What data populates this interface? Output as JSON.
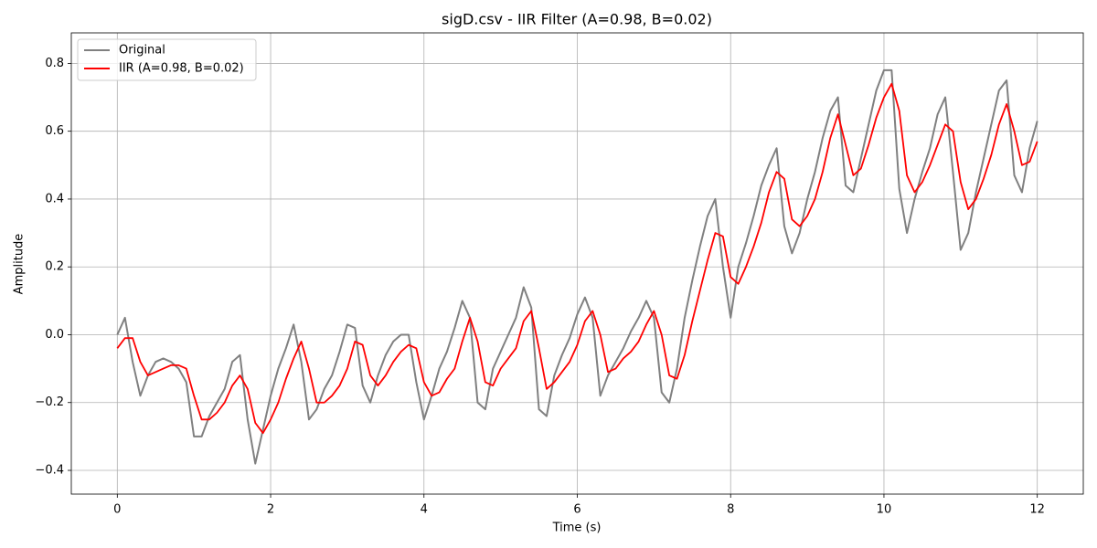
{
  "chart_data": {
    "type": "line",
    "title": "sigD.csv - IIR Filter (A=0.98, B=0.02)",
    "x_label": "Time (s)",
    "y_label": "Amplitude",
    "x": [
      0,
      0.1,
      0.2,
      0.3,
      0.4,
      0.5,
      0.6,
      0.7,
      0.8,
      0.9,
      1,
      1.1,
      1.2,
      1.3,
      1.4,
      1.5,
      1.6,
      1.7,
      1.8,
      1.9,
      2,
      2.1,
      2.2,
      2.3,
      2.4,
      2.5,
      2.6,
      2.7,
      2.8,
      2.9,
      3,
      3.1,
      3.2,
      3.3,
      3.4,
      3.5,
      3.6,
      3.7,
      3.8,
      3.9,
      4,
      4.1,
      4.2,
      4.3,
      4.4,
      4.5,
      4.6,
      4.7,
      4.8,
      4.9,
      5,
      5.1,
      5.2,
      5.3,
      5.4,
      5.5,
      5.6,
      5.7,
      5.8,
      5.9,
      6,
      6.1,
      6.2,
      6.3,
      6.4,
      6.5,
      6.6,
      6.7,
      6.8,
      6.9,
      7,
      7.1,
      7.2,
      7.3,
      7.4,
      7.5,
      7.6,
      7.7,
      7.8,
      7.9,
      8,
      8.1,
      8.2,
      8.3,
      8.4,
      8.5,
      8.6,
      8.7,
      8.8,
      8.9,
      9,
      9.1,
      9.2,
      9.3,
      9.4,
      9.5,
      9.6,
      9.7,
      9.8,
      9.9,
      10,
      10.1,
      10.2,
      10.3,
      10.4,
      10.5,
      10.6,
      10.7,
      10.8,
      10.9,
      11,
      11.1,
      11.2,
      11.3,
      11.4,
      11.5,
      11.6,
      11.7,
      11.8,
      11.9,
      12
    ],
    "series": [
      {
        "name": "Original",
        "color": "#808080",
        "values": [
          0,
          0.05,
          -0.08,
          -0.18,
          -0.12,
          -0.08,
          -0.07,
          -0.08,
          -0.1,
          -0.14,
          -0.3,
          -0.3,
          -0.24,
          -0.2,
          -0.16,
          -0.08,
          -0.06,
          -0.25,
          -0.38,
          -0.28,
          -0.18,
          -0.1,
          -0.04,
          0.03,
          -0.08,
          -0.25,
          -0.22,
          -0.16,
          -0.12,
          -0.05,
          0.03,
          0.02,
          -0.15,
          -0.2,
          -0.12,
          -0.06,
          -0.02,
          0,
          0,
          -0.14,
          -0.25,
          -0.18,
          -0.1,
          -0.05,
          0.02,
          0.1,
          0.05,
          -0.2,
          -0.22,
          -0.1,
          -0.05,
          0,
          0.05,
          0.14,
          0.08,
          -0.22,
          -0.24,
          -0.12,
          -0.06,
          -0.01,
          0.06,
          0.11,
          0.05,
          -0.18,
          -0.12,
          -0.08,
          -0.04,
          0.01,
          0.05,
          0.1,
          0.05,
          -0.17,
          -0.2,
          -0.1,
          0.05,
          0.16,
          0.26,
          0.35,
          0.4,
          0.2,
          0.05,
          0.2,
          0.27,
          0.35,
          0.44,
          0.5,
          0.55,
          0.32,
          0.24,
          0.3,
          0.4,
          0.48,
          0.58,
          0.66,
          0.7,
          0.44,
          0.42,
          0.52,
          0.62,
          0.72,
          0.78,
          0.78,
          0.43,
          0.3,
          0.4,
          0.48,
          0.55,
          0.65,
          0.7,
          0.48,
          0.25,
          0.3,
          0.42,
          0.52,
          0.62,
          0.72,
          0.75,
          0.47,
          0.42,
          0.55,
          0.63
        ]
      },
      {
        "name": "IIR (A=0.98, B=0.02)",
        "color": "#ff0000",
        "values": [
          -0.04,
          -0.01,
          -0.01,
          -0.08,
          -0.12,
          -0.11,
          -0.1,
          -0.09,
          -0.09,
          -0.1,
          -0.18,
          -0.25,
          -0.25,
          -0.23,
          -0.2,
          -0.15,
          -0.12,
          -0.16,
          -0.26,
          -0.29,
          -0.25,
          -0.2,
          -0.13,
          -0.07,
          -0.02,
          -0.1,
          -0.2,
          -0.2,
          -0.18,
          -0.15,
          -0.1,
          -0.02,
          -0.03,
          -0.12,
          -0.15,
          -0.12,
          -0.08,
          -0.05,
          -0.03,
          -0.04,
          -0.14,
          -0.18,
          -0.17,
          -0.13,
          -0.1,
          -0.02,
          0.05,
          -0.02,
          -0.14,
          -0.15,
          -0.1,
          -0.07,
          -0.04,
          0.04,
          0.07,
          -0.04,
          -0.16,
          -0.14,
          -0.11,
          -0.08,
          -0.03,
          0.04,
          0.07,
          0,
          -0.11,
          -0.1,
          -0.07,
          -0.05,
          -0.02,
          0.03,
          0.07,
          0,
          -0.12,
          -0.13,
          -0.06,
          0.04,
          0.13,
          0.22,
          0.3,
          0.29,
          0.17,
          0.15,
          0.2,
          0.26,
          0.33,
          0.42,
          0.48,
          0.46,
          0.34,
          0.32,
          0.35,
          0.4,
          0.48,
          0.58,
          0.65,
          0.56,
          0.47,
          0.49,
          0.56,
          0.64,
          0.7,
          0.74,
          0.66,
          0.47,
          0.42,
          0.45,
          0.5,
          0.56,
          0.62,
          0.6,
          0.45,
          0.37,
          0.4,
          0.46,
          0.53,
          0.62,
          0.68,
          0.6,
          0.5,
          0.51,
          0.57
        ]
      }
    ],
    "xlim": [
      -0.6,
      12.6
    ],
    "ylim": [
      -0.47,
      0.89
    ],
    "xticks": [
      0,
      2,
      4,
      6,
      8,
      10,
      12
    ],
    "yticks": [
      {
        "value": -0.4,
        "label": "−0.4"
      },
      {
        "value": -0.2,
        "label": "−0.2"
      },
      {
        "value": 0,
        "label": "0.0"
      },
      0.2,
      0.4,
      0.6,
      0.8
    ],
    "grid": true,
    "legend": "upper left"
  }
}
